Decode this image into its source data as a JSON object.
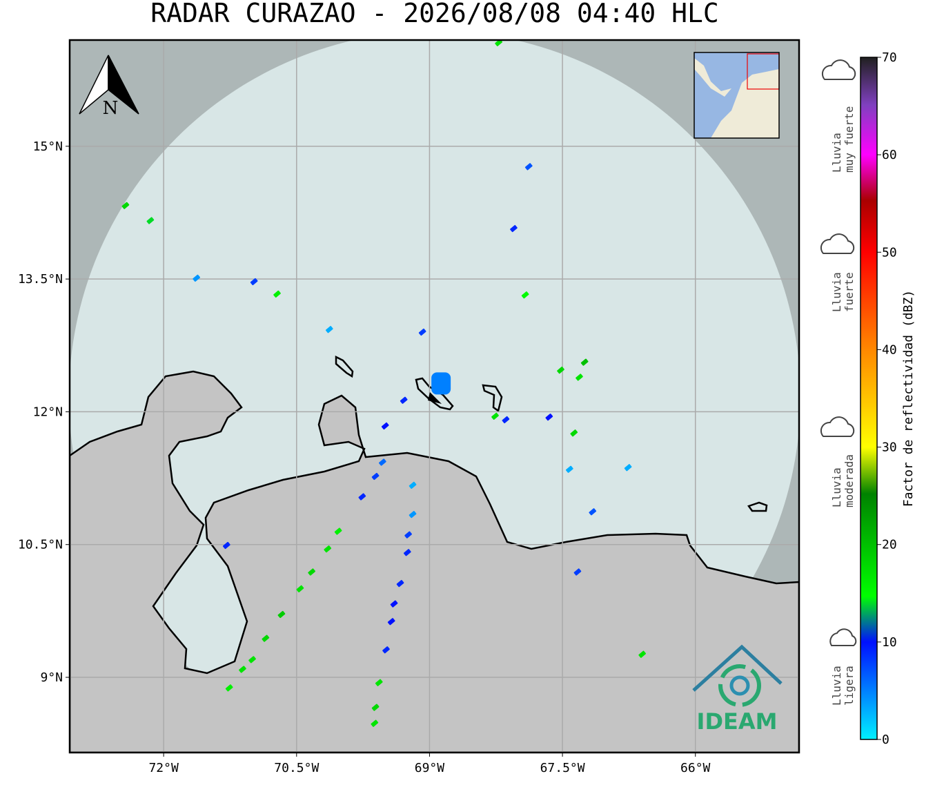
{
  "title": "RADAR CURAZAO - 2026/08/08 04:40 HLC",
  "map": {
    "xlim": [
      -73.06,
      -64.83
    ],
    "ylim": [
      8.15,
      16.2
    ],
    "xticks": [
      {
        "value": -72,
        "label": "72°W"
      },
      {
        "value": -70.5,
        "label": "70.5°W"
      },
      {
        "value": -69,
        "label": "69°W"
      },
      {
        "value": -67.5,
        "label": "67.5°W"
      },
      {
        "value": -66,
        "label": "66°W"
      }
    ],
    "yticks": [
      {
        "value": 9,
        "label": "9°N"
      },
      {
        "value": 10.5,
        "label": "10.5°N"
      },
      {
        "value": 12,
        "label": "12°N"
      },
      {
        "value": 13.5,
        "label": "13.5°N"
      },
      {
        "value": 15,
        "label": "15°N"
      }
    ],
    "grid": true,
    "echoes": [
      {
        "lon": -68.87,
        "lat": 12.32,
        "dbz": 5
      },
      {
        "lon": -72.43,
        "lat": 14.33,
        "dbz": 18
      },
      {
        "lon": -72.15,
        "lat": 14.16,
        "dbz": 14
      },
      {
        "lon": -71.63,
        "lat": 13.51,
        "dbz": 4
      },
      {
        "lon": -70.98,
        "lat": 13.47,
        "dbz": 8
      },
      {
        "lon": -70.72,
        "lat": 13.33,
        "dbz": 16
      },
      {
        "lon": -70.13,
        "lat": 12.93,
        "dbz": 3
      },
      {
        "lon": -69.08,
        "lat": 12.9,
        "dbz": 8
      },
      {
        "lon": -67.88,
        "lat": 14.77,
        "dbz": 7
      },
      {
        "lon": -68.05,
        "lat": 14.07,
        "dbz": 9
      },
      {
        "lon": -67.92,
        "lat": 13.32,
        "dbz": 15
      },
      {
        "lon": -67.52,
        "lat": 12.47,
        "dbz": 18
      },
      {
        "lon": -67.25,
        "lat": 12.56,
        "dbz": 20
      },
      {
        "lon": -67.31,
        "lat": 12.39,
        "dbz": 17
      },
      {
        "lon": -67.65,
        "lat": 11.94,
        "dbz": 10
      },
      {
        "lon": -67.37,
        "lat": 11.76,
        "dbz": 18
      },
      {
        "lon": -68.26,
        "lat": 11.95,
        "dbz": 17
      },
      {
        "lon": -68.14,
        "lat": 11.91,
        "dbz": 9
      },
      {
        "lon": -67.42,
        "lat": 11.35,
        "dbz": 3
      },
      {
        "lon": -66.76,
        "lat": 11.37,
        "dbz": 3
      },
      {
        "lon": -67.16,
        "lat": 10.87,
        "dbz": 7
      },
      {
        "lon": -67.33,
        "lat": 10.19,
        "dbz": 8
      },
      {
        "lon": -69.53,
        "lat": 11.43,
        "dbz": 6
      },
      {
        "lon": -69.61,
        "lat": 11.27,
        "dbz": 8
      },
      {
        "lon": -69.76,
        "lat": 11.04,
        "dbz": 9
      },
      {
        "lon": -70.03,
        "lat": 10.65,
        "dbz": 16
      },
      {
        "lon": -70.15,
        "lat": 10.45,
        "dbz": 17
      },
      {
        "lon": -70.33,
        "lat": 10.19,
        "dbz": 18
      },
      {
        "lon": -70.46,
        "lat": 10.0,
        "dbz": 17
      },
      {
        "lon": -70.67,
        "lat": 9.71,
        "dbz": 19
      },
      {
        "lon": -70.85,
        "lat": 9.44,
        "dbz": 18
      },
      {
        "lon": -71.0,
        "lat": 9.2,
        "dbz": 17
      },
      {
        "lon": -71.11,
        "lat": 9.09,
        "dbz": 17
      },
      {
        "lon": -71.26,
        "lat": 8.88,
        "dbz": 16
      },
      {
        "lon": -69.19,
        "lat": 11.17,
        "dbz": 3
      },
      {
        "lon": -69.19,
        "lat": 10.84,
        "dbz": 4
      },
      {
        "lon": -69.24,
        "lat": 10.61,
        "dbz": 8
      },
      {
        "lon": -69.25,
        "lat": 10.41,
        "dbz": 9
      },
      {
        "lon": -69.33,
        "lat": 10.06,
        "dbz": 9
      },
      {
        "lon": -69.4,
        "lat": 9.83,
        "dbz": 10
      },
      {
        "lon": -69.43,
        "lat": 9.63,
        "dbz": 10
      },
      {
        "lon": -69.49,
        "lat": 9.31,
        "dbz": 9
      },
      {
        "lon": -69.57,
        "lat": 8.94,
        "dbz": 17
      },
      {
        "lon": -69.61,
        "lat": 8.66,
        "dbz": 18
      },
      {
        "lon": -69.62,
        "lat": 8.48,
        "dbz": 17
      },
      {
        "lon": -66.6,
        "lat": 9.26,
        "dbz": 17
      },
      {
        "lon": -71.29,
        "lat": 10.49,
        "dbz": 9
      },
      {
        "lon": -68.22,
        "lat": 16.17,
        "dbz": 17
      },
      {
        "lon": -69.29,
        "lat": 12.13,
        "dbz": 9
      },
      {
        "lon": -69.5,
        "lat": 11.84,
        "dbz": 10
      }
    ]
  },
  "north_arrow": "N",
  "logo": "IDEAM",
  "colorbar": {
    "label": "Factor de reflectividad (dBZ)",
    "lim": [
      0,
      70
    ],
    "ticks": [
      0,
      10,
      20,
      30,
      40,
      50,
      60,
      70
    ]
  },
  "legend": [
    {
      "lines": [
        "Lluvia",
        "muy fuerte"
      ]
    },
    {
      "lines": [
        "Lluvia",
        "fuerte"
      ]
    },
    {
      "lines": [
        "Lluvia",
        "moderada"
      ]
    },
    {
      "lines": [
        "Lluvia",
        "ligera"
      ]
    }
  ]
}
